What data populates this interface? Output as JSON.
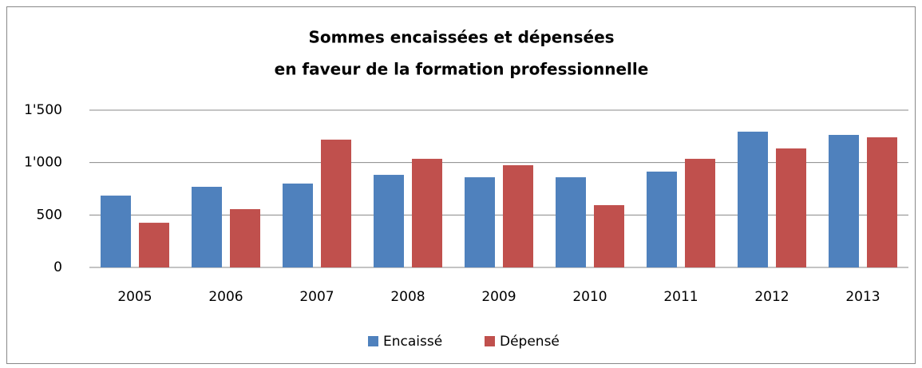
{
  "chart_data": {
    "type": "bar",
    "title": [
      "Sommes encaissées et dépensées",
      "en faveur de la formation professionnelle"
    ],
    "categories": [
      "2005",
      "2006",
      "2007",
      "2008",
      "2009",
      "2010",
      "2011",
      "2012",
      "2013"
    ],
    "series": [
      {
        "name": "Encaissé",
        "color": "#4f81bd",
        "values": [
          685,
          769,
          800,
          883,
          860,
          860,
          914,
          1295,
          1264
        ]
      },
      {
        "name": "Dépensé",
        "color": "#c0504d",
        "values": [
          426,
          556,
          1219,
          1036,
          975,
          594,
          1036,
          1135,
          1241
        ]
      }
    ],
    "ylim": [
      0,
      1500
    ],
    "yticks": [
      0,
      500,
      {
        "value": 1000,
        "label": "1'000"
      },
      {
        "value": 1500,
        "label": "1'500"
      }
    ],
    "grid": true,
    "legend": "bottom"
  }
}
